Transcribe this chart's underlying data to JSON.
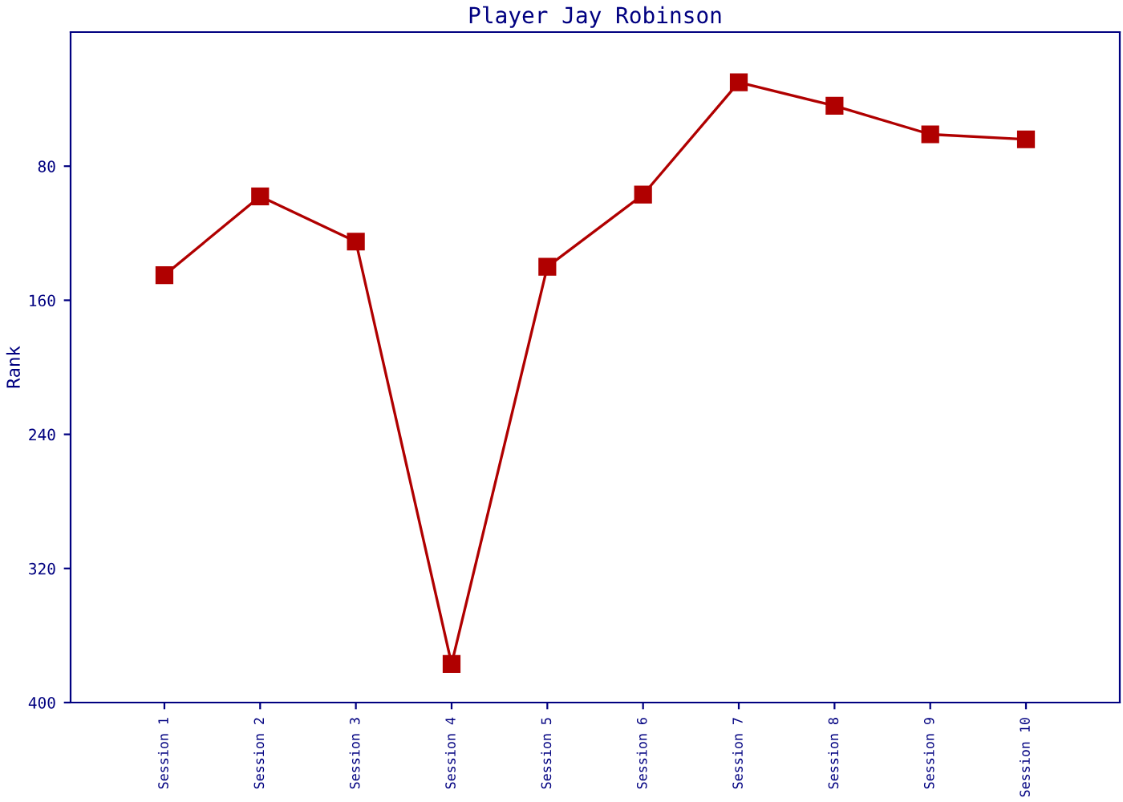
{
  "chart_data": {
    "type": "line",
    "title": "Player Jay Robinson",
    "ylabel": "Rank",
    "categories": [
      "Session 1",
      "Session 2",
      "Session 3",
      "Session 4",
      "Session 5",
      "Session 6",
      "Session 7",
      "Session 8",
      "Session 9",
      "Session 10"
    ],
    "series": [
      {
        "color": "#b00000",
        "values": [
          145,
          98,
          125,
          377,
          140,
          97,
          30,
          44,
          61,
          64
        ]
      }
    ],
    "ylim": [
      400,
      0
    ],
    "yticks": [
      80,
      160,
      240,
      320,
      400
    ],
    "grid": false,
    "legend": false,
    "marker": "square",
    "line_style": "solid"
  }
}
